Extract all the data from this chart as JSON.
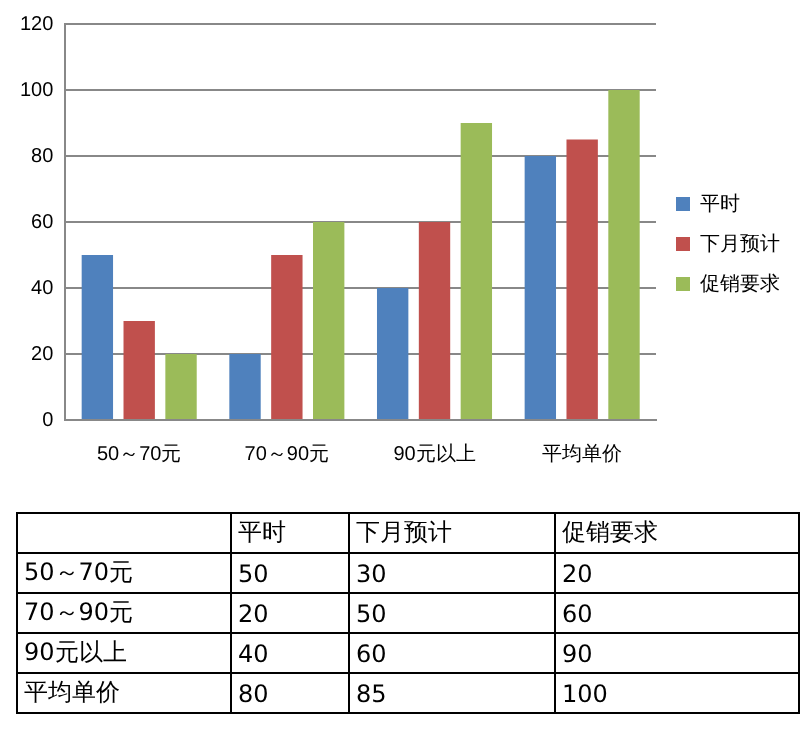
{
  "chart_data": [
    {
      "type": "bar",
      "categories": [
        "50～70元",
        "70～90元",
        "90元以上",
        "平均单价"
      ],
      "series": [
        {
          "name": "平时",
          "color": "#4f81bd",
          "values": [
            50,
            20,
            40,
            80
          ]
        },
        {
          "name": "下月预计",
          "color": "#c0504d",
          "values": [
            30,
            50,
            60,
            85
          ]
        },
        {
          "name": "促销要求",
          "color": "#9bbb59",
          "values": [
            20,
            60,
            90,
            100
          ]
        }
      ],
      "ylim": [
        0,
        120
      ],
      "yticks": [
        0,
        20,
        40,
        60,
        80,
        100,
        120
      ],
      "grid": "y",
      "legend": "right"
    },
    {
      "type": "heatmap",
      "categories": [
        "平时",
        "下月预计",
        "促销要求"
      ],
      "y_categories": [
        "50～70元",
        "70～90元",
        "90元以上",
        "平均单价"
      ],
      "cells": [
        [
          null,
          null,
          null
        ],
        [
          null,
          null,
          null
        ],
        [
          null,
          null,
          null
        ],
        [
          null,
          null,
          null
        ]
      ],
      "cell_labels": [
        [
          "50",
          "30",
          "20"
        ],
        [
          "20",
          "50",
          "60"
        ],
        [
          "40",
          "60",
          "90"
        ],
        [
          "80",
          "85",
          "100"
        ]
      ]
    }
  ]
}
